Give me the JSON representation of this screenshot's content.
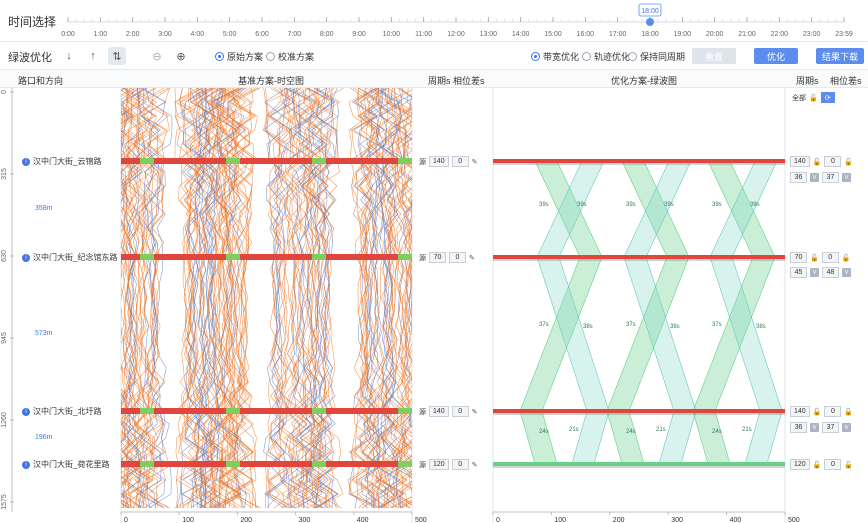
{
  "timebar": {
    "title": "时间选择",
    "ticks": [
      "0:00",
      "1:00",
      "2:00",
      "3:00",
      "4:00",
      "5:00",
      "6:00",
      "7:00",
      "8:00",
      "9:00",
      "10:00",
      "11:00",
      "12:00",
      "13:00",
      "14:00",
      "15:00",
      "16:00",
      "17:00",
      "18:00",
      "19:00",
      "20:00",
      "21:00",
      "22:00",
      "23:00",
      "23:59"
    ],
    "selected_time": "18:00"
  },
  "toolbar": {
    "title": "绿波优化",
    "radio_original": "原始方案",
    "radio_calibrate": "校准方案",
    "radio_bandwidth": "带宽优化",
    "radio_trajectory": "轨迹优化",
    "radio_keep_cycle": "保持同周期",
    "reset_label": "重置",
    "optimize_label": "优化",
    "download_label": "结果下载",
    "accent": "#5b8def"
  },
  "header": {
    "col_intersection": "路口和方向",
    "col_baseline": "基准方案-时空图",
    "col_cycle_left": "周期s 相位差s",
    "col_optimized": "优化方案-绿波图",
    "col_cycle_right": "周期s",
    "col_offset_right": "相位差s"
  },
  "all_label": "全部",
  "y_axis_ticks": [
    "0",
    "315",
    "630",
    "945",
    "1260",
    "1575"
  ],
  "x_axis_ticks": [
    "0",
    "100",
    "200",
    "300",
    "400",
    "500"
  ],
  "intersections": [
    {
      "name": "汉中门大街_云锦路",
      "source": "源",
      "cycle": "140",
      "offset": "0",
      "opt_cycle": "140",
      "opt_offset": "0",
      "split_a": "36",
      "split_b": "37"
    },
    {
      "name": "汉中门大街_纪念馆东路",
      "source": "源",
      "cycle": "70",
      "offset": "0",
      "opt_cycle": "70",
      "opt_offset": "0",
      "split_a": "45",
      "split_b": "48"
    },
    {
      "name": "汉中门大街_北圩路",
      "source": "源",
      "cycle": "140",
      "offset": "0",
      "opt_cycle": "140",
      "opt_offset": "0",
      "split_a": "36",
      "split_b": "37"
    },
    {
      "name": "汉中门大街_荷花里路",
      "source": "源",
      "cycle": "120",
      "offset": "0",
      "opt_cycle": "120",
      "opt_offset": "0"
    }
  ],
  "distances": [
    "358m",
    "573m",
    "196m"
  ],
  "v_label": "V",
  "band_labels": [
    "39s",
    "39s",
    "39s",
    "39s",
    "39s",
    "39s",
    "37s",
    "38s",
    "37s",
    "38s",
    "37s",
    "38s",
    "24s",
    "21s",
    "24s",
    "21s",
    "24s",
    "21s"
  ],
  "colors": {
    "accent": "#5b8def",
    "red_phase": "#e0463c",
    "green_phase": "#7fcf5e",
    "trajectory_orange": "#f07a2a",
    "trajectory_blue": "#5a7fd0",
    "band_green": "#66d18a"
  }
}
